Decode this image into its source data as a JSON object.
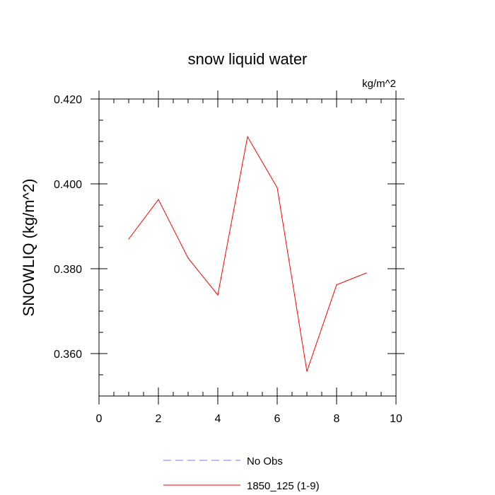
{
  "chart_data": {
    "type": "line",
    "title": "snow liquid water",
    "units": "kg/m^2",
    "xlabel": "",
    "ylabel": "SNOWLIQ  (kg/m^2)",
    "xlim": [
      0,
      10
    ],
    "ylim": [
      0.35,
      0.42
    ],
    "x_ticks": [
      0,
      2,
      4,
      6,
      8,
      10
    ],
    "x_tick_labels": [
      "0",
      "2",
      "4",
      "6",
      "8",
      "10"
    ],
    "x_minor_step": 0.5,
    "y_ticks": [
      0.36,
      0.38,
      0.4,
      0.42
    ],
    "y_tick_labels": [
      "0.360",
      "0.380",
      "0.400",
      "0.420"
    ],
    "y_minor_step": 0.005,
    "grid": false,
    "legend_position": "bottom",
    "series": [
      {
        "name": "1850_125 (1-9)",
        "color": "#ff0000",
        "line_style": "solid",
        "x": [
          1,
          2,
          3,
          4,
          5,
          6,
          7,
          8,
          9
        ],
        "y": [
          0.387,
          0.3963,
          0.3825,
          0.3738,
          0.4111,
          0.3991,
          0.3558,
          0.3762,
          0.379
        ]
      }
    ],
    "legend": [
      {
        "label": "No Obs",
        "color": "#7777ff",
        "line_style": "dashed"
      },
      {
        "label": "1850_125 (1-9)",
        "color": "#ff0000",
        "line_style": "solid"
      }
    ]
  }
}
